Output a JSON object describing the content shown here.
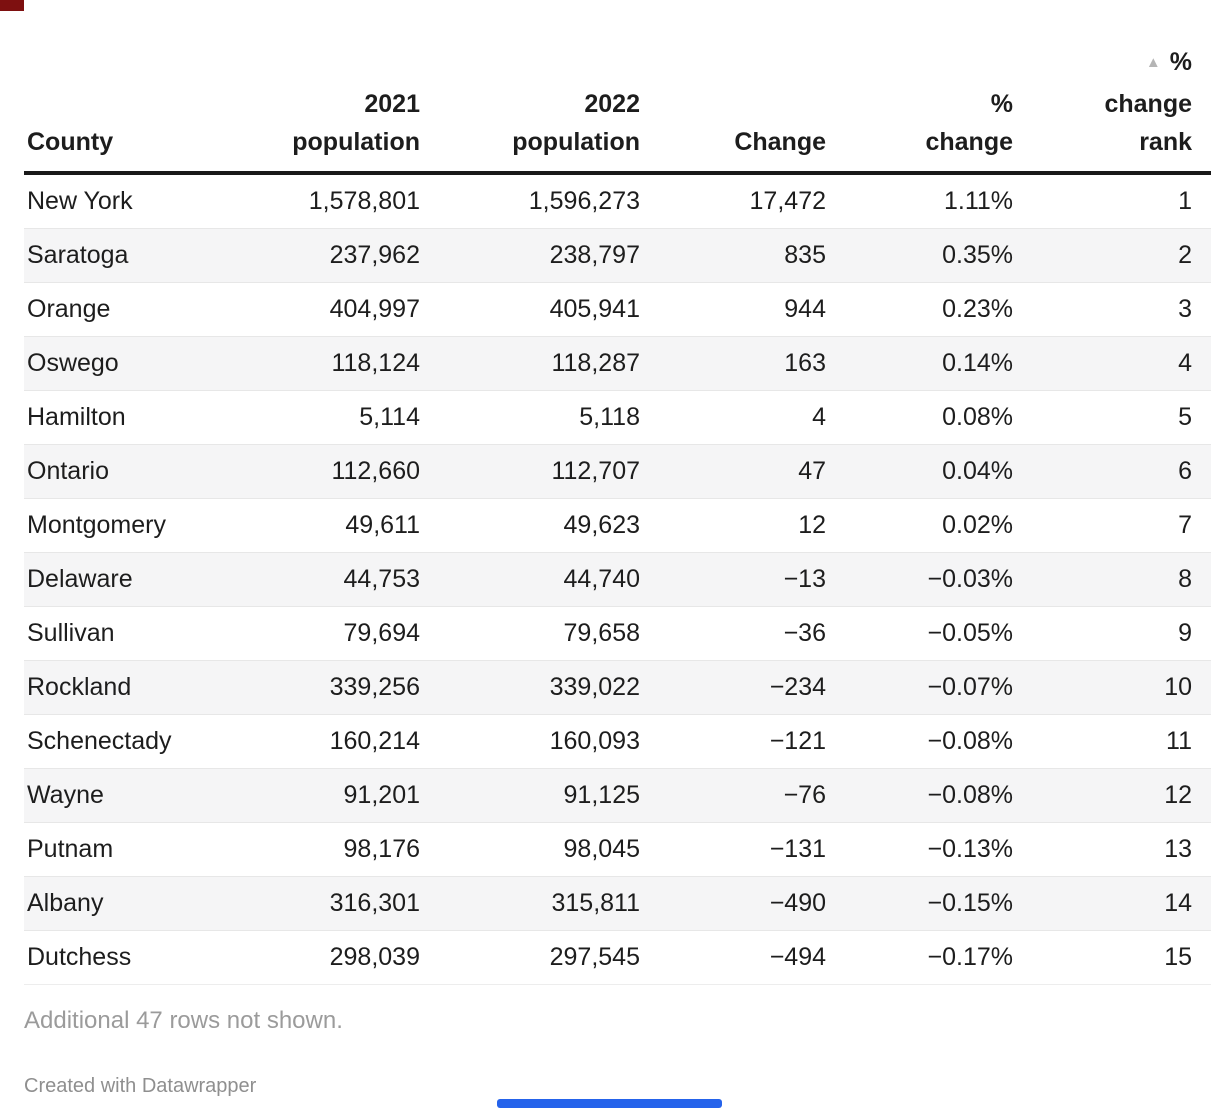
{
  "chart_data": {
    "type": "table",
    "columns": [
      {
        "id": "county",
        "label_lines": [
          "County"
        ],
        "align": "left"
      },
      {
        "id": "pop2021",
        "label_lines": [
          "2021",
          "population"
        ],
        "align": "right"
      },
      {
        "id": "pop2022",
        "label_lines": [
          "2022",
          "population"
        ],
        "align": "right"
      },
      {
        "id": "change",
        "label_lines": [
          "Change"
        ],
        "align": "right"
      },
      {
        "id": "pct-change",
        "label_lines": [
          "%",
          "change"
        ],
        "align": "right"
      },
      {
        "id": "pct-change-rank",
        "label_lines": [
          "%",
          "change",
          "rank"
        ],
        "align": "right",
        "sort_icon": "▲",
        "sorted_ascending": true
      }
    ],
    "rows": [
      [
        "New York",
        "1,578,801",
        "1,596,273",
        "17,472",
        "1.11%",
        "1"
      ],
      [
        "Saratoga",
        "237,962",
        "238,797",
        "835",
        "0.35%",
        "2"
      ],
      [
        "Orange",
        "404,997",
        "405,941",
        "944",
        "0.23%",
        "3"
      ],
      [
        "Oswego",
        "118,124",
        "118,287",
        "163",
        "0.14%",
        "4"
      ],
      [
        "Hamilton",
        "5,114",
        "5,118",
        "4",
        "0.08%",
        "5"
      ],
      [
        "Ontario",
        "112,660",
        "112,707",
        "47",
        "0.04%",
        "6"
      ],
      [
        "Montgomery",
        "49,611",
        "49,623",
        "12",
        "0.02%",
        "7"
      ],
      [
        "Delaware",
        "44,753",
        "44,740",
        "−13",
        "−0.03%",
        "8"
      ],
      [
        "Sullivan",
        "79,694",
        "79,658",
        "−36",
        "−0.05%",
        "9"
      ],
      [
        "Rockland",
        "339,256",
        "339,022",
        "−234",
        "−0.07%",
        "10"
      ],
      [
        "Schenectady",
        "160,214",
        "160,093",
        "−121",
        "−0.08%",
        "11"
      ],
      [
        "Wayne",
        "91,201",
        "91,125",
        "−76",
        "−0.08%",
        "12"
      ],
      [
        "Putnam",
        "98,176",
        "98,045",
        "−131",
        "−0.13%",
        "13"
      ],
      [
        "Albany",
        "316,301",
        "315,811",
        "−490",
        "−0.15%",
        "14"
      ],
      [
        "Dutchess",
        "298,039",
        "297,545",
        "−494",
        "−0.17%",
        "15"
      ]
    ],
    "title": "",
    "legend_position": "none",
    "grid": "row-separators"
  },
  "footer": {
    "note": "Additional 47 rows not shown.",
    "attribution": "Created with Datawrapper"
  },
  "colors": {
    "text": "#1d1d1d",
    "header_border": "#191919",
    "zebra_stripe": "#f5f5f6",
    "row_separator": "#e7e7e7",
    "note_gray": "#9b9b9b",
    "attribution_gray": "#8f8f8f",
    "sort_icon_gray": "#b5b5b5",
    "top_left_marker": "#7e1010",
    "bottom_marker_bar": "#2563eb"
  }
}
